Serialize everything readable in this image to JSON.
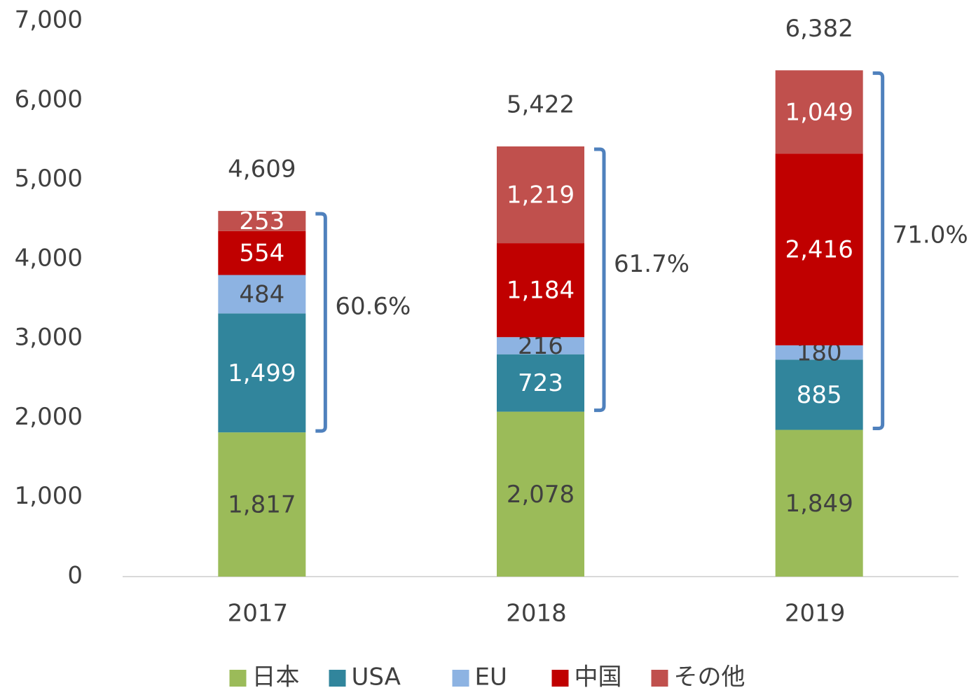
{
  "chart_data": {
    "type": "stacked_bar",
    "categories": [
      "2017",
      "2018",
      "2019"
    ],
    "series": [
      {
        "name": "日本",
        "color": "#9bbb59",
        "values": [
          1817,
          2078,
          1849
        ],
        "value_labels": [
          "1,817",
          "2,078",
          "1,849"
        ]
      },
      {
        "name": "USA",
        "color": "#31859c",
        "values": [
          1499,
          723,
          885
        ],
        "value_labels": [
          "1,499",
          "723",
          "885"
        ]
      },
      {
        "name": "EU",
        "color": "#8db3e2",
        "values": [
          484,
          216,
          180
        ],
        "value_labels": [
          "484",
          "216",
          "180"
        ]
      },
      {
        "name": "中国",
        "color": "#c00000",
        "values": [
          554,
          1184,
          2416
        ],
        "value_labels": [
          "554",
          "1,184",
          "2,416"
        ]
      },
      {
        "name": "その他",
        "color": "#c0504d",
        "values": [
          253,
          1219,
          1049
        ],
        "value_labels": [
          "253",
          "1,219",
          "1,049"
        ]
      }
    ],
    "totals": [
      4609,
      5422,
      6382
    ],
    "total_labels": [
      "4,609",
      "5,422",
      "6,382"
    ],
    "annotations": [
      "60.6%",
      "61.7%",
      "71.0%"
    ],
    "annotation_color": "#4f81bd",
    "ylim": [
      0,
      7000
    ],
    "yticks": [
      0,
      {
        "value": 1000,
        "label": "1,000"
      },
      {
        "value": 2000,
        "label": "2,000"
      },
      {
        "value": 3000,
        "label": "3,000"
      },
      {
        "value": 4000,
        "label": "4,000"
      },
      {
        "value": 5000,
        "label": "5,000"
      },
      {
        "value": 6000,
        "label": "6,000"
      },
      {
        "value": 7000,
        "label": "7,000"
      }
    ],
    "legend": "bottom"
  }
}
